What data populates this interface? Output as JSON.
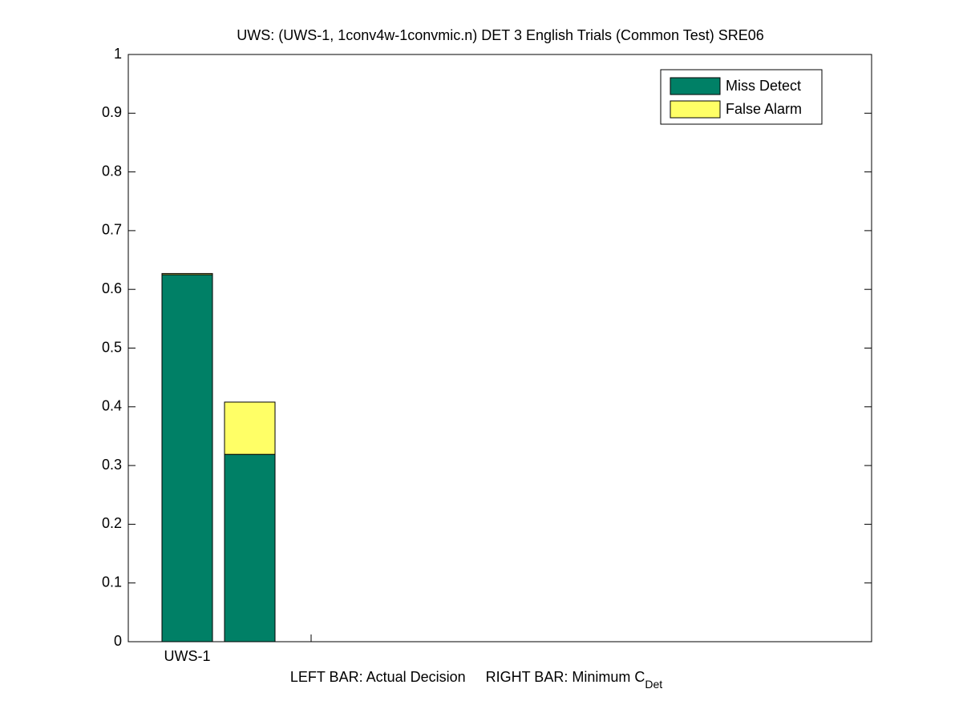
{
  "chart_data": {
    "type": "stacked-bar",
    "title": "UWS: (UWS-1, 1conv4w-1convmic.n) DET 3 English Trials (Common Test) SRE06",
    "categories": [
      "UWS-1",
      null
    ],
    "series": [
      {
        "name": "Miss Detect",
        "color": "#008066",
        "values": [
          0.625,
          0.319
        ]
      },
      {
        "name": "False Alarm",
        "color": "#ffff66",
        "values": [
          0.002,
          0.089
        ]
      }
    ],
    "xlabel": "LEFT BAR: Actual Decision     RIGHT BAR: Minimum C",
    "xlabel_subscript": "Det",
    "ylim": [
      0,
      1
    ],
    "yticks": [
      0,
      0.1,
      0.2,
      0.3,
      0.4,
      0.5,
      0.6,
      0.7,
      0.8,
      0.9,
      1
    ],
    "legend": "top-right"
  }
}
